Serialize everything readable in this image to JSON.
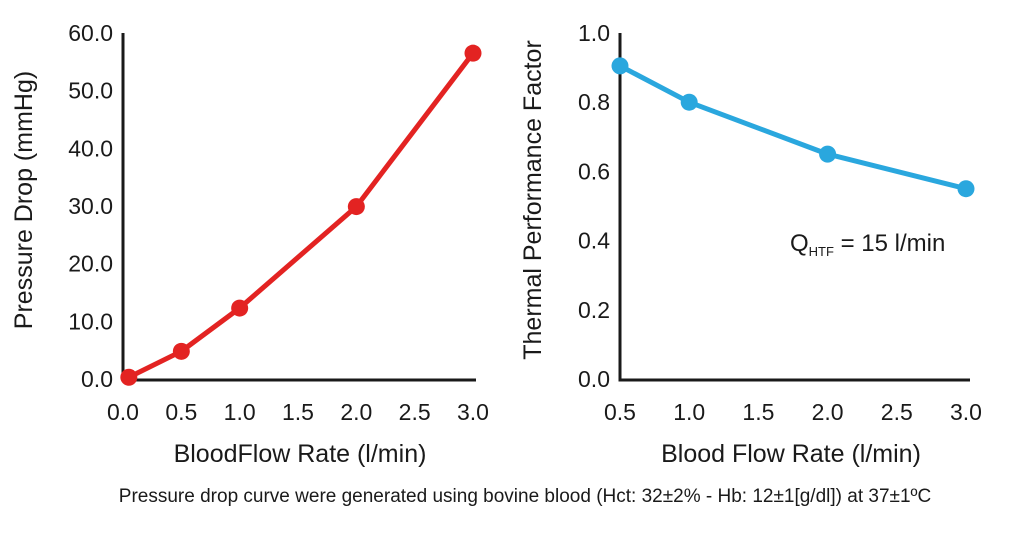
{
  "figure": {
    "caption": "Pressure drop curve were generated using bovine blood (Hct: 32±2% - Hb: 12±1[g/dl]) at 37±1ºC"
  },
  "chart_data": [
    {
      "type": "line",
      "xlabel": "BloodFlow Rate (l/min)",
      "ylabel": "Pressure Drop (mmHg)",
      "xlim": [
        0.0,
        3.0
      ],
      "ylim": [
        0.0,
        60.0
      ],
      "x_ticks": [
        "0.0",
        "0.5",
        "1.0",
        "1.5",
        "2.0",
        "2.5",
        "3.0"
      ],
      "y_ticks": [
        "0.0",
        "10.0",
        "20.0",
        "30.0",
        "40.0",
        "50.0",
        "60.0"
      ],
      "grid": false,
      "series": [
        {
          "color": "#e32322",
          "x": [
            0.05,
            0.5,
            1.0,
            2.0,
            3.0
          ],
          "values": [
            0.3,
            4.8,
            12.3,
            29.9,
            56.5
          ]
        }
      ]
    },
    {
      "type": "line",
      "xlabel": "Blood Flow Rate (l/min)",
      "ylabel": "Thermal Performance Factor",
      "xlim": [
        0.5,
        3.0
      ],
      "ylim": [
        0.0,
        1.0
      ],
      "x_ticks": [
        "0.5",
        "1.0",
        "1.5",
        "2.0",
        "2.5",
        "3.0"
      ],
      "y_ticks": [
        "0.0",
        "0.2",
        "0.4",
        "0.6",
        "0.8",
        "1.0"
      ],
      "grid": false,
      "annotation": {
        "main": "Q",
        "subscript": "HTF",
        "rest": " = 15 l/min"
      },
      "series": [
        {
          "color": "#2aa7de",
          "x": [
            0.5,
            1.0,
            2.0,
            3.0
          ],
          "values": [
            0.905,
            0.8,
            0.65,
            0.55
          ]
        }
      ]
    }
  ]
}
